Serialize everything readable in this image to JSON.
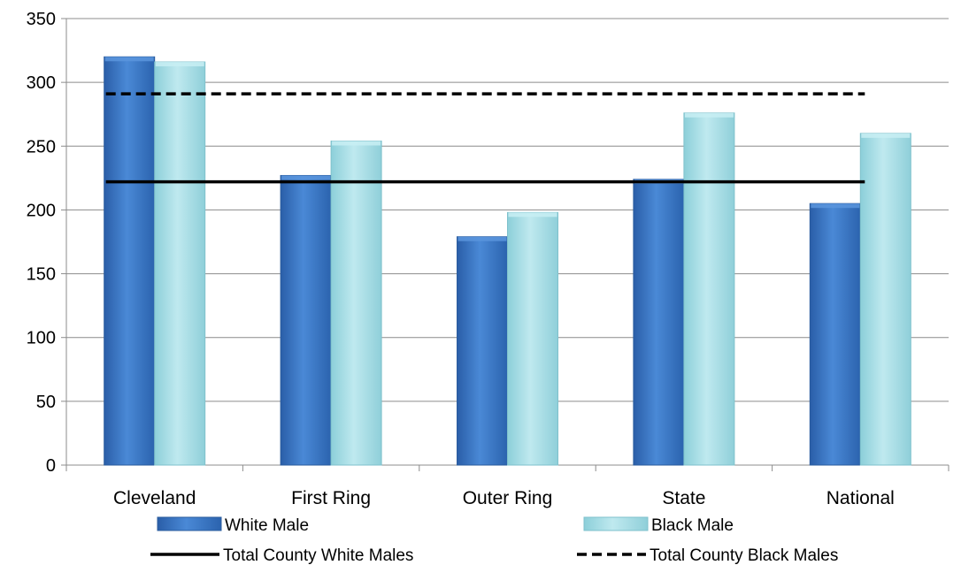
{
  "chart_data": {
    "type": "bar",
    "title": "",
    "xlabel": "",
    "ylabel": "",
    "categories": [
      "Cleveland",
      "First Ring",
      "Outer Ring",
      "State",
      "National"
    ],
    "ylim": [
      0,
      350
    ],
    "yticks": [
      "0",
      "50",
      "100",
      "150",
      "200",
      "250",
      "300",
      "350"
    ],
    "grid": "horizontal",
    "legend_position": "bottom",
    "series": [
      {
        "name": "White Male",
        "values": [
          320,
          227,
          179,
          224,
          205
        ],
        "color": "#3a75c4",
        "kind": "bar"
      },
      {
        "name": "Black Male",
        "values": [
          316,
          254,
          198,
          276,
          260
        ],
        "color": "#9fd9e2",
        "kind": "bar"
      }
    ],
    "reference_lines": [
      {
        "name": "Total County White Males",
        "value": 222,
        "style": "solid",
        "color": "#000000"
      },
      {
        "name": "Total County Black Males",
        "value": 291,
        "style": "dashed",
        "color": "#000000"
      }
    ]
  }
}
